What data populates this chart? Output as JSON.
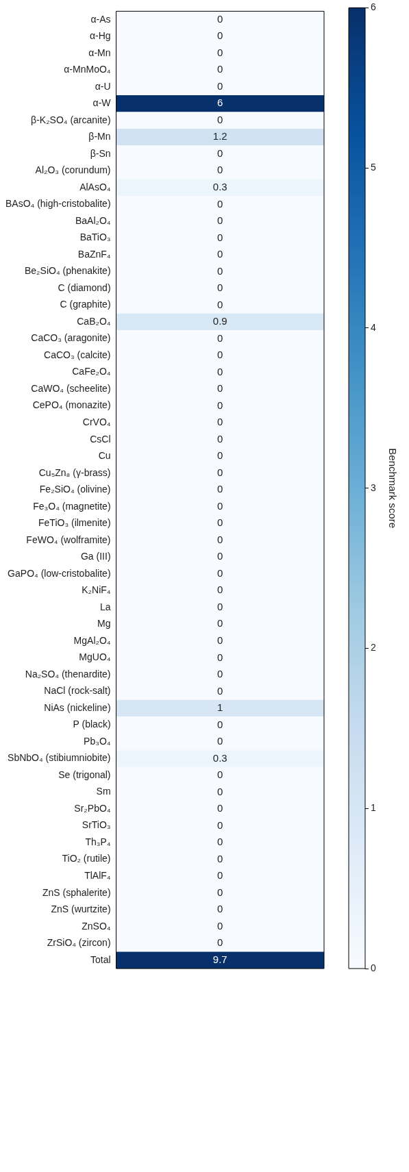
{
  "chart_data": {
    "type": "heatmap",
    "categories": [
      null
    ],
    "y_categories": [
      "α-As",
      "α-Hg",
      "α-Mn",
      "α-MnMoO₄",
      "α-U",
      "α-W",
      "β-K₂SO₄ (arcanite)",
      "β-Mn",
      "β-Sn",
      "Al₂O₃ (corundum)",
      "AlAsO₄",
      "BAsO₄ (high-cristobalite)",
      "BaAl₂O₄",
      "BaTiO₃",
      "BaZnF₄",
      "Be₂SiO₄ (phenakite)",
      "C (diamond)",
      "C (graphite)",
      "CaB₂O₄",
      "CaCO₃ (aragonite)",
      "CaCO₃ (calcite)",
      "CaFe₂O₄",
      "CaWO₄ (scheelite)",
      "CePO₄ (monazite)",
      "CrVO₄",
      "CsCl",
      "Cu",
      "Cu₅Zn₈ (γ-brass)",
      "Fe₂SiO₄ (olivine)",
      "Fe₃O₄ (magnetite)",
      "FeTiO₃ (ilmenite)",
      "FeWO₄ (wolframite)",
      "Ga (III)",
      "GaPO₄ (low-cristobalite)",
      "K₂NiF₄",
      "La",
      "Mg",
      "MgAl₂O₄",
      "MgUO₄",
      "Na₂SO₄ (thenardite)",
      "NaCl (rock-salt)",
      "NiAs (nickeline)",
      "P (black)",
      "Pb₃O₄",
      "SbNbO₄ (stibiumniobite)",
      "Se (trigonal)",
      "Sm",
      "Sr₂PbO₄",
      "SrTiO₃",
      "Th₃P₄",
      "TiO₂ (rutile)",
      "TlAlF₄",
      "ZnS (sphalerite)",
      "ZnS (wurtzite)",
      "ZnSO₄",
      "ZrSiO₄ (zircon)",
      "Total"
    ],
    "cells": [
      [
        0
      ],
      [
        0
      ],
      [
        0
      ],
      [
        0
      ],
      [
        0
      ],
      [
        6
      ],
      [
        0
      ],
      [
        1.2
      ],
      [
        0
      ],
      [
        0
      ],
      [
        0.3
      ],
      [
        0
      ],
      [
        0
      ],
      [
        0
      ],
      [
        0
      ],
      [
        0
      ],
      [
        0
      ],
      [
        0
      ],
      [
        0.9
      ],
      [
        0
      ],
      [
        0
      ],
      [
        0
      ],
      [
        0
      ],
      [
        0
      ],
      [
        0
      ],
      [
        0
      ],
      [
        0
      ],
      [
        0
      ],
      [
        0
      ],
      [
        0
      ],
      [
        0
      ],
      [
        0
      ],
      [
        0
      ],
      [
        0
      ],
      [
        0
      ],
      [
        0
      ],
      [
        0
      ],
      [
        0
      ],
      [
        0
      ],
      [
        0
      ],
      [
        0
      ],
      [
        1
      ],
      [
        0
      ],
      [
        0
      ],
      [
        0.3
      ],
      [
        0
      ],
      [
        0
      ],
      [
        0
      ],
      [
        0
      ],
      [
        0
      ],
      [
        0
      ],
      [
        0
      ],
      [
        0
      ],
      [
        0
      ],
      [
        0
      ],
      [
        0
      ],
      [
        9.7
      ]
    ],
    "clim": [
      0,
      6
    ],
    "cticks": [
      0,
      1,
      2,
      3,
      4,
      5,
      6
    ],
    "clabel": "Benchmark score",
    "data_labels": true,
    "tick_labels": "y"
  }
}
